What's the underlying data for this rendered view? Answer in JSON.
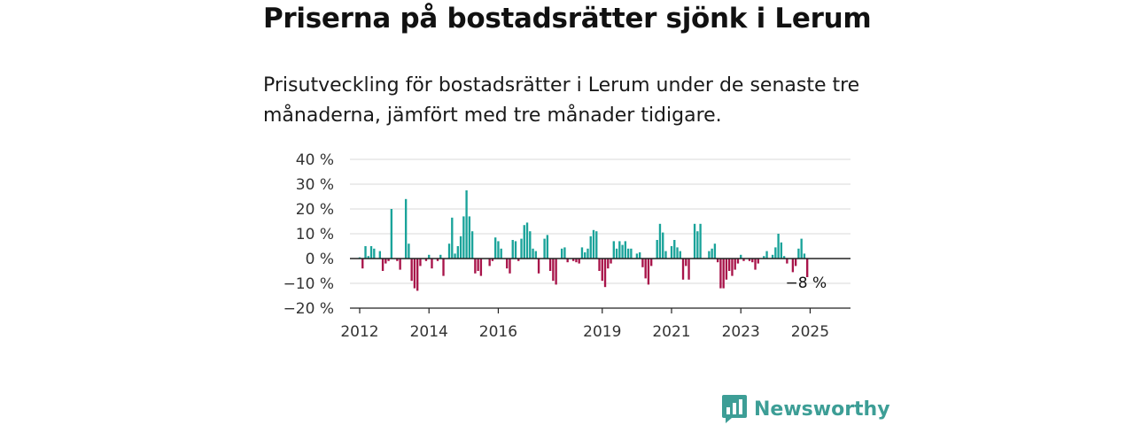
{
  "header": {
    "title": "Priserna på bostadsrätter sjönk i Lerum",
    "subtitle": "Prisutveckling för bostadsrätter i Lerum under de senaste tre månaderna, jämfört med tre månader tidigare."
  },
  "brand": {
    "name": "Newsworthy",
    "icon": "newsworthy-logo-icon",
    "color": "#3d9e96"
  },
  "colors": {
    "positive": "#1aa39a",
    "negative": "#a8144a",
    "grid": "#d9d9d9",
    "zero_line": "#222222"
  },
  "chart_data": {
    "type": "bar",
    "title": "Priserna på bostadsrätter sjönk i Lerum",
    "subtitle": "Prisutveckling för bostadsrätter i Lerum under de senaste tre månaderna, jämfört med tre månader tidigare.",
    "ylim": [
      -20,
      40
    ],
    "y_ticks": [
      40,
      30,
      20,
      10,
      0,
      -10,
      -20
    ],
    "y_tick_labels": [
      "40 %",
      "30 %",
      "20 %",
      "10 %",
      "0 %",
      "−10 %",
      "−20 %"
    ],
    "x_tick_labels": [
      "2012",
      "2014",
      "2016",
      "2019",
      "2021",
      "2023",
      "2025"
    ],
    "x_start": "2012-01",
    "x_end": "2025-07",
    "grid": true,
    "end_annotation": "−8 %",
    "values": [
      0.5,
      -4,
      5,
      1,
      5,
      4,
      0,
      3,
      -5,
      -2,
      -1,
      20,
      0,
      -1,
      -4.5,
      0,
      24,
      6,
      -9,
      -12,
      -13,
      -3,
      0,
      -1,
      1.5,
      -4,
      0,
      -1,
      1.5,
      -7,
      0,
      6,
      16.5,
      2,
      5,
      9,
      17,
      27.5,
      17,
      11,
      -6,
      -5,
      -7,
      0,
      0,
      -3,
      -1,
      8.5,
      7,
      4,
      0,
      -4,
      -6,
      7.5,
      7,
      -1,
      8,
      13.5,
      14.5,
      11,
      4,
      3,
      -6,
      0,
      8,
      9.5,
      -5,
      -9,
      -10.5,
      0,
      4,
      4.5,
      -1.5,
      0,
      -1,
      -1.5,
      -2,
      4.5,
      2.5,
      4,
      9,
      11.5,
      11,
      -5,
      -9,
      -11.5,
      -4,
      -2,
      7,
      4,
      7,
      5.5,
      7,
      4,
      4,
      0,
      2,
      2.5,
      -3.5,
      -8,
      -10.5,
      -3,
      0,
      7.5,
      14,
      10.5,
      3,
      0,
      5,
      7.5,
      4.5,
      3,
      -8.5,
      -3,
      -8.5,
      0,
      14,
      11,
      14,
      0,
      0,
      3,
      4,
      6,
      -1.5,
      -12,
      -12,
      -8.5,
      -5,
      -7,
      -4.5,
      -2,
      1.5,
      -1,
      0,
      -1,
      -1.5,
      -4.5,
      -2,
      0,
      1,
      3,
      0,
      1.5,
      4.5,
      10,
      6.5,
      1,
      -2,
      0,
      -5.5,
      -3,
      4,
      8,
      2,
      -7.5
    ]
  }
}
